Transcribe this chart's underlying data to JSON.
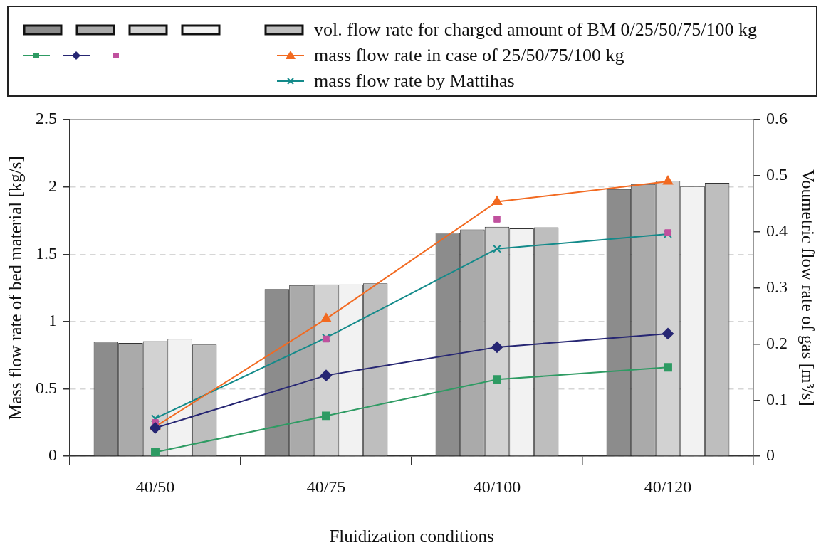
{
  "chart_data": {
    "type": "bar",
    "xlabel": "Fluidization conditions",
    "ylabel": "Mass flow rate of bed material [kg/s]",
    "y2label": "Voumetric flow rate of gas [m³/s]",
    "categories": [
      "40/50",
      "40/75",
      "40/100",
      "40/120"
    ],
    "series": [
      {
        "axis": "y2",
        "color": "#8c8c8c",
        "values": [
          0.204,
          0.298,
          0.398,
          0.476
        ]
      },
      {
        "axis": "y2",
        "color": "#aaaaaa",
        "values": [
          0.202,
          0.305,
          0.404,
          0.485
        ]
      },
      {
        "axis": "y2",
        "color": "#d2d2d2",
        "values": [
          0.205,
          0.306,
          0.409,
          0.491
        ]
      },
      {
        "axis": "y2",
        "color": "#f2f2f2",
        "values": [
          0.209,
          0.306,
          0.406,
          0.481
        ]
      },
      {
        "name": "vol. flow rate for charged amount of BM 0/25/50/75/100 kg",
        "axis": "y2",
        "color": "#bebebe",
        "values": [
          0.199,
          0.308,
          0.408,
          0.487
        ]
      },
      {
        "type": "line",
        "marker": "square",
        "color": "#2e9b63",
        "values": [
          0.03,
          0.3,
          0.57,
          0.66
        ]
      },
      {
        "type": "line",
        "marker": "diamond",
        "color": "#262673",
        "values": [
          0.21,
          0.6,
          0.81,
          0.91
        ]
      },
      {
        "type": "scatter",
        "marker": "square",
        "color": "#c0509e",
        "x": [
          "40/50",
          "40/75",
          "40/100",
          "40/120"
        ],
        "values": [
          0.25,
          0.87,
          1.76,
          1.66
        ]
      },
      {
        "name": "mass flow rate in case of 25/50/75/100 kg",
        "type": "line",
        "marker": "triangle",
        "color": "#f26a21",
        "values": [
          0.22,
          1.02,
          1.89,
          2.04
        ]
      },
      {
        "name": "mass flow rate by Mattihas",
        "type": "line",
        "marker": "cross",
        "color": "#138a8a",
        "values": [
          0.28,
          0.88,
          1.54,
          1.65
        ]
      }
    ],
    "ylim": [
      0,
      2.5
    ],
    "yticks": [
      0,
      0.5,
      1,
      1.5,
      2,
      2.5
    ],
    "y2lim": [
      0,
      0.6
    ],
    "y2ticks": [
      0,
      0.1,
      0.2,
      0.3,
      0.4,
      0.5,
      0.6
    ],
    "grid": "y",
    "legend": "top"
  }
}
